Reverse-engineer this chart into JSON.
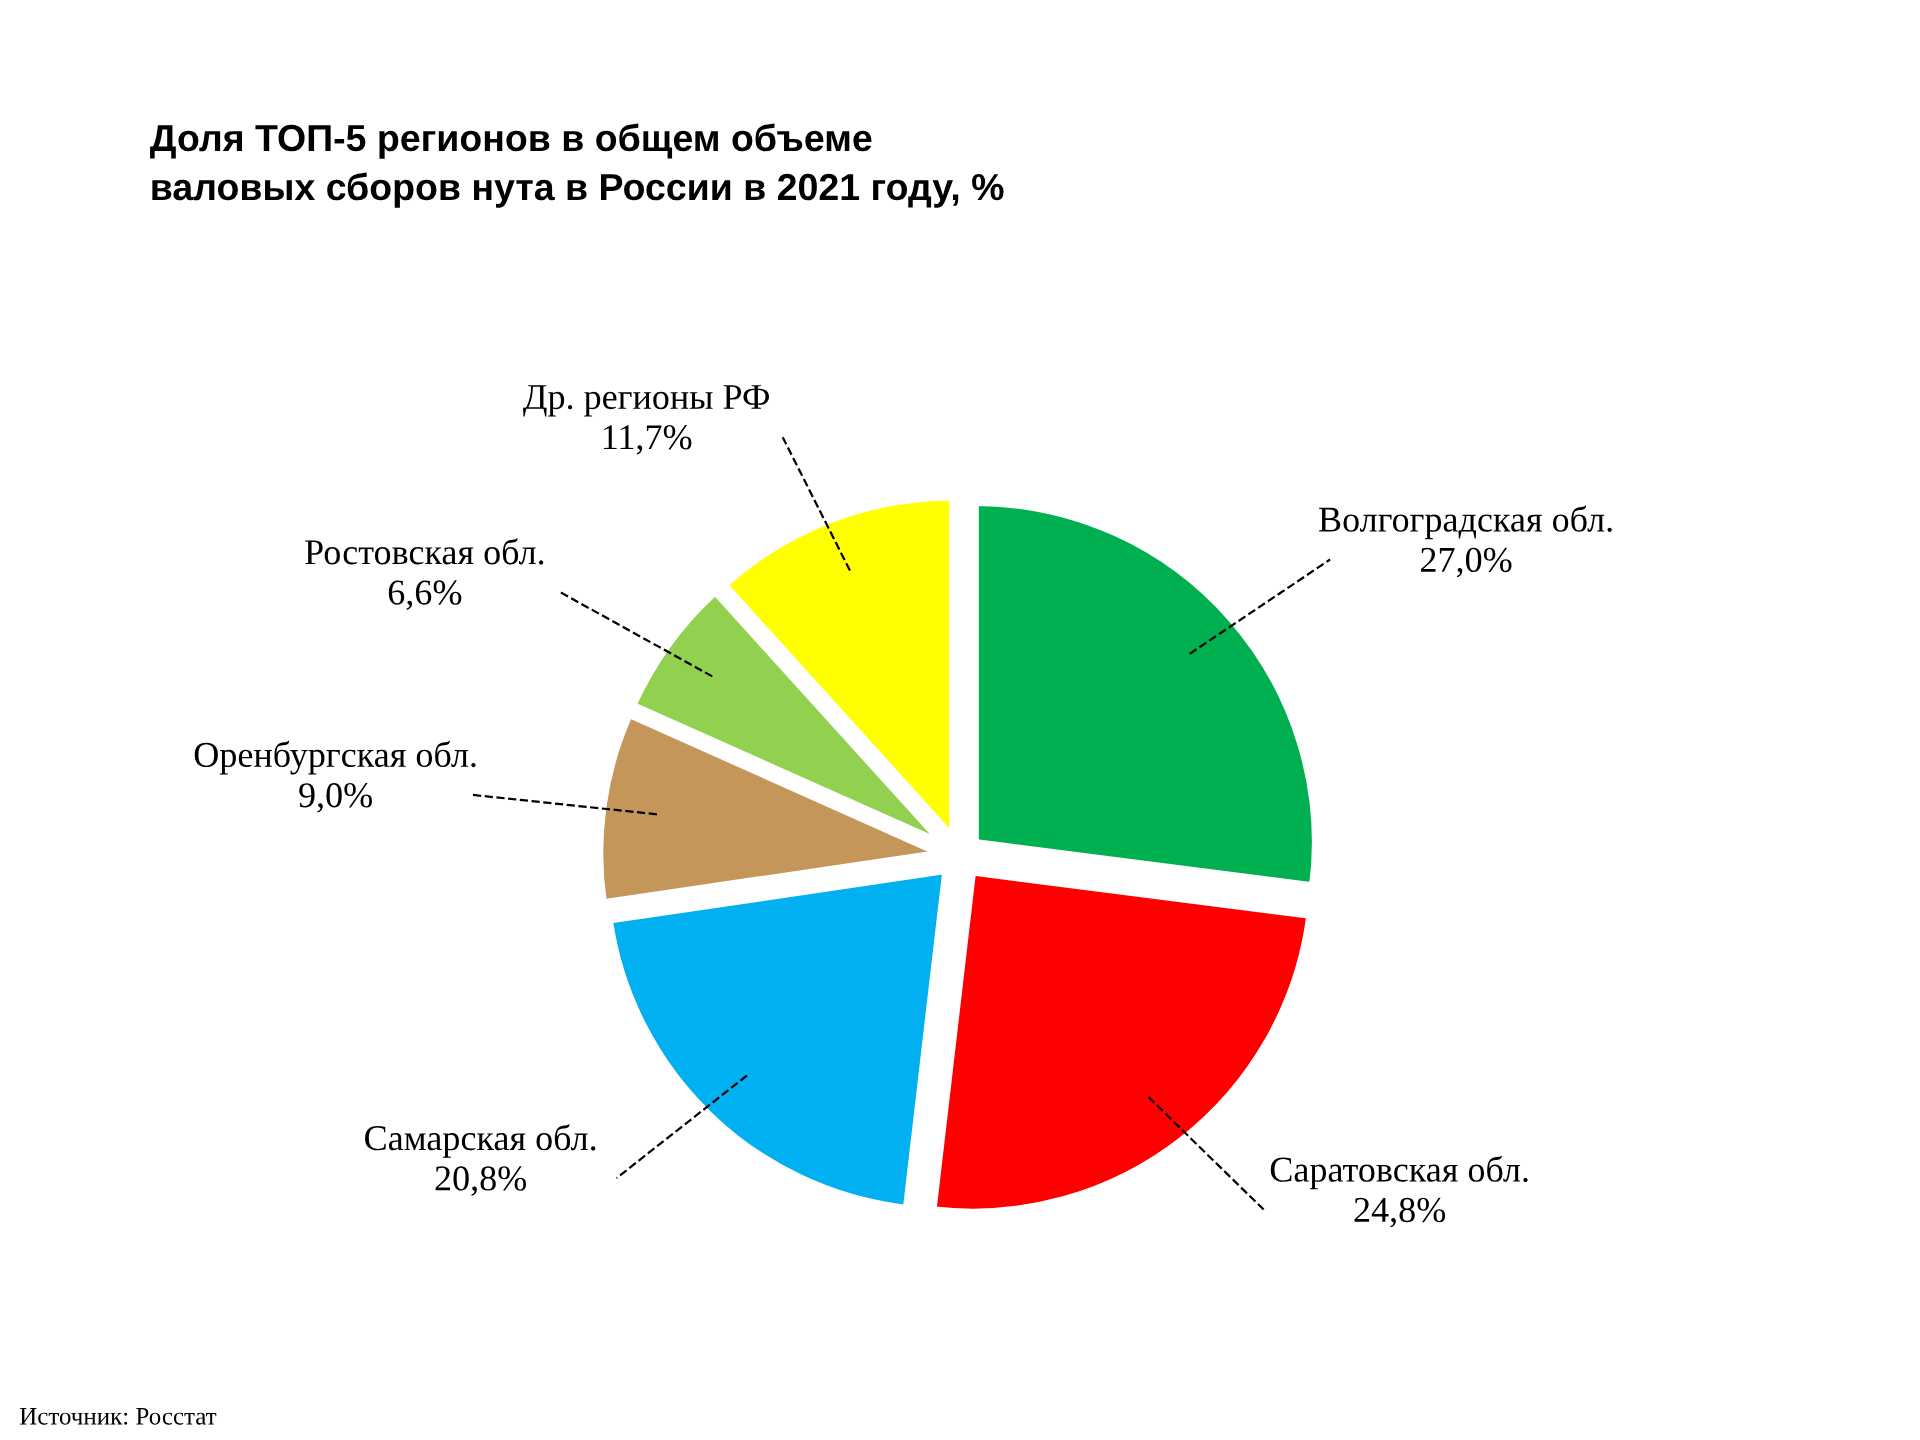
{
  "chart_data": {
    "type": "pie",
    "title": "Доля ТОП-5 регионов в общем объеме\nваловых сборов нута в России в 2021 году, %",
    "categories": [
      "Волгоградская обл.",
      "Саратовская обл.",
      "Самарская обл.",
      "Оренбургская обл.",
      "Ростовская обл.",
      "Др. регионы РФ"
    ],
    "values": [
      27.0,
      24.8,
      20.8,
      9.0,
      6.6,
      11.7
    ],
    "value_labels": [
      "27,0%",
      "24,8%",
      "20,8%",
      "9,0%",
      "6,6%",
      "11,7%"
    ],
    "colors": [
      "#00b050",
      "#ff0000",
      "#00b0f0",
      "#c4965a",
      "#92d050",
      "#ffff00"
    ],
    "annotations": [
      "Источник: Росстат"
    ]
  }
}
